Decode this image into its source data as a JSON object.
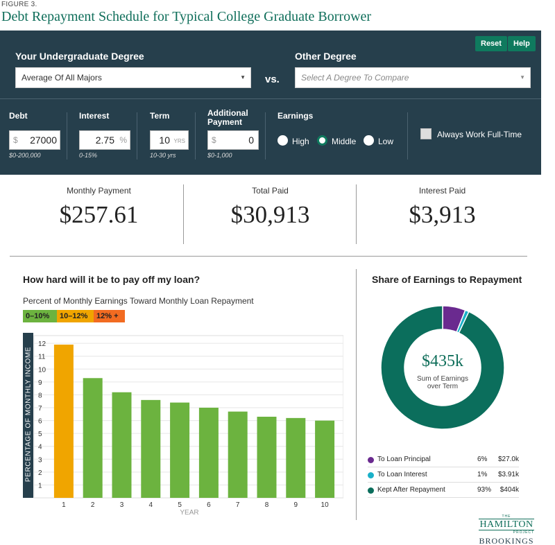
{
  "figure": {
    "label": "FIGURE 3.",
    "title": "Debt Repayment Schedule for Typical College Graduate Borrower"
  },
  "buttons": {
    "reset": "Reset",
    "help": "Help"
  },
  "degrees": {
    "undergrad_label": "Your Undergraduate Degree",
    "undergrad_value": "Average Of All Majors",
    "vs": "vs.",
    "other_label": "Other Degree",
    "other_placeholder": "Select A Degree To Compare"
  },
  "fields": {
    "debt": {
      "label": "Debt",
      "prefix": "$",
      "value": "27000",
      "range": "$0-200,000"
    },
    "interest": {
      "label": "Interest",
      "value": "2.75",
      "suffix": "%",
      "range": "0-15%"
    },
    "term": {
      "label": "Term",
      "value": "10",
      "suffix": "YRS",
      "range": "10-30 yrs"
    },
    "additional": {
      "label": "Additional Payment",
      "prefix": "$",
      "value": "0",
      "range": "$0-1,000"
    }
  },
  "earnings": {
    "label": "Earnings",
    "options": [
      "High",
      "Middle",
      "Low"
    ],
    "selected": "Middle"
  },
  "full_time": {
    "label": "Always Work Full-Time",
    "checked": false
  },
  "summary": {
    "monthly_label": "Monthly Payment",
    "monthly_value": "$257.61",
    "total_label": "Total Paid",
    "total_value": "$30,913",
    "interest_label": "Interest Paid",
    "interest_value": "$3,913"
  },
  "bar_section": {
    "title": "How hard will it be to pay off my loan?",
    "subtitle": "Percent of Monthly Earnings Toward Monthly Loan Repayment",
    "legend": [
      {
        "label": "0–10%",
        "color": "#6cb33f"
      },
      {
        "label": "10–12%",
        "color": "#f0a500"
      },
      {
        "label": "12% +",
        "color": "#f26b21"
      }
    ]
  },
  "chart_data": [
    {
      "type": "bar",
      "categories": [
        "1",
        "2",
        "3",
        "4",
        "5",
        "6",
        "7",
        "8",
        "9",
        "10"
      ],
      "values": [
        11.9,
        9.3,
        8.2,
        7.6,
        7.4,
        7.0,
        6.7,
        6.3,
        6.2,
        6.0
      ],
      "xlabel": "YEAR",
      "ylabel": "PERCENTAGE OF MONTHLY INCOME",
      "ylim": [
        0,
        12.6
      ],
      "yticks": [
        1,
        2,
        3,
        4,
        5,
        6,
        7,
        8,
        9,
        10,
        11,
        12
      ],
      "grid": true,
      "colors": {
        "low": "#6cb33f",
        "mid": "#f0a500",
        "high": "#f26b21"
      }
    },
    {
      "type": "pie",
      "title": "Share of Earnings to Repayment",
      "center_value": "$435k",
      "center_label": "Sum of Earnings over Term",
      "slices": [
        {
          "name": "To Loan Principal",
          "pct": 6,
          "pct_label": "6%",
          "amount": "$27.0k",
          "color": "#6a2a8f"
        },
        {
          "name": "To Loan Interest",
          "pct": 1,
          "pct_label": "1%",
          "amount": "$3.91k",
          "color": "#1ab0c8"
        },
        {
          "name": "Kept After Repayment",
          "pct": 93,
          "pct_label": "93%",
          "amount": "$404k",
          "color": "#0b6e5c"
        }
      ]
    }
  ],
  "logo": {
    "the": "THE",
    "hamilton": "HAMILTON",
    "project": "PROJECT",
    "brookings": "BROOKINGS"
  }
}
